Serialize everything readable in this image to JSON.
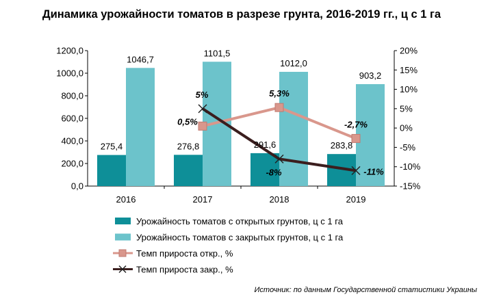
{
  "chart_data": {
    "type": "bar",
    "title": "Динамика урожайности томатов в разрезе грунта, 2016-2019 гг., ц с 1 га",
    "categories": [
      "2016",
      "2017",
      "2018",
      "2019"
    ],
    "ylim": [
      0,
      1200
    ],
    "y_ticks": [
      "0,0",
      "200,0",
      "400,0",
      "600,0",
      "800,0",
      "1000,0",
      "1200,0"
    ],
    "y2lim": [
      -15,
      20
    ],
    "y2_ticks": [
      "-15%",
      "-10%",
      "-5%",
      "0%",
      "5%",
      "10%",
      "15%",
      "20%"
    ],
    "series": [
      {
        "name": "Урожайность томатов с открытых грунтов, ц с 1 га",
        "kind": "bar",
        "axis": "left",
        "color": "#0E8F98",
        "values": [
          275.4,
          276.8,
          291.6,
          283.8
        ],
        "labels": [
          "275,4",
          "276,8",
          "291,6",
          "283,8"
        ]
      },
      {
        "name": "Урожайность томатов с закрытых грунтов, ц с 1 га",
        "kind": "bar",
        "axis": "left",
        "color": "#6CC3CB",
        "values": [
          1046.7,
          1101.5,
          1012.0,
          903.2
        ],
        "labels": [
          "1046,7",
          "1101,5",
          "1012,0",
          "903,2"
        ]
      },
      {
        "name": "Темп прироста откр., %",
        "kind": "line",
        "axis": "right",
        "color": "#D9978C",
        "marker": "square",
        "values": [
          null,
          0.5,
          5.3,
          -2.7
        ],
        "labels": [
          null,
          "0,5%",
          "5,3%",
          "-2,7%"
        ]
      },
      {
        "name": "Темп прироста закр., %",
        "kind": "line",
        "axis": "right",
        "color": "#3B1E1E",
        "marker": "x",
        "values": [
          null,
          5,
          -8,
          -11
        ],
        "labels": [
          null,
          "5%",
          "-8%",
          "-11%"
        ]
      }
    ],
    "grid": false,
    "legend": "bottom",
    "source": "Источник: по данным Государственной статистики Украины"
  }
}
